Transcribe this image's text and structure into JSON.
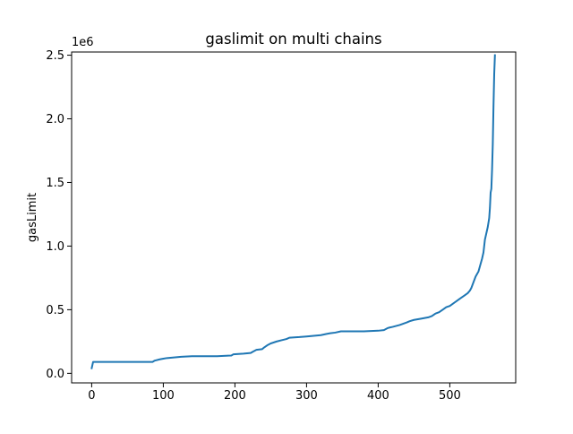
{
  "chart_data": {
    "type": "line",
    "title": "gaslimit on multi chains",
    "xlabel": "",
    "ylabel": "gasLimit",
    "y_offset_label": "1e6",
    "xlim": [
      -28,
      592
    ],
    "ylim": [
      -0.075,
      2.525
    ],
    "x_ticks": [
      0,
      100,
      200,
      300,
      400,
      500
    ],
    "y_ticks": [
      0.0,
      0.5,
      1.0,
      1.5,
      2.0,
      2.5
    ],
    "x_tick_labels": [
      "0",
      "100",
      "200",
      "300",
      "400",
      "500"
    ],
    "y_tick_labels": [
      "0.0",
      "0.5",
      "1.0",
      "1.5",
      "2.0",
      "2.5"
    ],
    "grid": false,
    "legend": "none",
    "series": [
      {
        "color": "#1f77b4",
        "x": [
          0,
          2,
          10,
          30,
          50,
          70,
          85,
          88,
          95,
          100,
          105,
          115,
          125,
          140,
          150,
          175,
          195,
          198,
          212,
          222,
          225,
          230,
          238,
          240,
          245,
          250,
          258,
          265,
          272,
          276,
          290,
          300,
          310,
          320,
          328,
          333,
          340,
          348,
          360,
          380,
          400,
          408,
          413,
          416,
          420,
          430,
          440,
          444,
          450,
          460,
          470,
          475,
          480,
          485,
          490,
          495,
          500,
          505,
          510,
          515,
          520,
          525,
          528,
          530,
          532,
          534,
          536,
          538,
          540,
          542,
          545,
          547,
          549,
          551,
          553,
          555,
          556,
          557,
          558,
          559,
          560,
          561,
          562,
          563
        ],
        "values": [
          0.04,
          0.09,
          0.09,
          0.09,
          0.09,
          0.09,
          0.09,
          0.1,
          0.11,
          0.115,
          0.12,
          0.125,
          0.13,
          0.135,
          0.135,
          0.135,
          0.14,
          0.15,
          0.155,
          0.16,
          0.17,
          0.185,
          0.19,
          0.2,
          0.22,
          0.235,
          0.25,
          0.26,
          0.27,
          0.28,
          0.285,
          0.29,
          0.295,
          0.3,
          0.31,
          0.315,
          0.32,
          0.33,
          0.33,
          0.33,
          0.335,
          0.34,
          0.355,
          0.36,
          0.365,
          0.38,
          0.4,
          0.41,
          0.42,
          0.43,
          0.44,
          0.45,
          0.47,
          0.48,
          0.5,
          0.52,
          0.53,
          0.55,
          0.57,
          0.59,
          0.61,
          0.63,
          0.65,
          0.67,
          0.7,
          0.73,
          0.76,
          0.78,
          0.8,
          0.84,
          0.9,
          0.95,
          1.05,
          1.1,
          1.15,
          1.22,
          1.3,
          1.42,
          1.45,
          1.6,
          1.8,
          2.1,
          2.35,
          2.5
        ]
      }
    ]
  }
}
